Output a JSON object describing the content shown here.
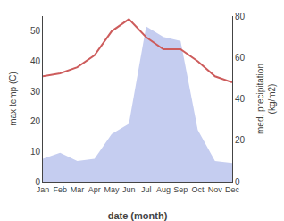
{
  "chart_data": {
    "type": "line",
    "categories": [
      "Jan",
      "Feb",
      "Mar",
      "Apr",
      "May",
      "Jun",
      "Jul",
      "Aug",
      "Sep",
      "Oct",
      "Nov",
      "Dec"
    ],
    "xlabel": "date (month)",
    "ylabel": "max temp (C)",
    "y2label": "med. precipitation\n(kg/m2)",
    "series": [
      {
        "type": "line",
        "color": "#cd5c5c",
        "values": [
          35,
          36,
          38,
          42,
          50,
          54,
          48,
          44,
          44,
          40,
          35,
          33
        ]
      },
      {
        "type": "area",
        "axis": "y2",
        "color": "#c5cdf0",
        "values": [
          11,
          14,
          10,
          11,
          23,
          28,
          75,
          70,
          68,
          25,
          10,
          9
        ]
      }
    ],
    "ylim": [
      0,
      55
    ],
    "yticks": [
      0,
      10,
      20,
      30,
      40,
      50
    ],
    "y2lim": [
      0,
      80
    ],
    "y2ticks": [
      0,
      20,
      40,
      60,
      80
    ],
    "grid": false
  }
}
